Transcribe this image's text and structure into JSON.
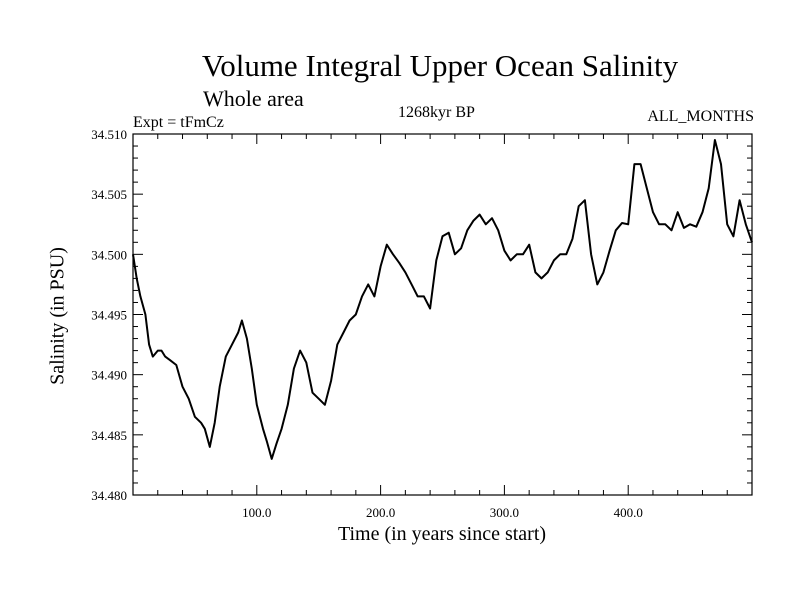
{
  "chart_data": {
    "type": "line",
    "title": "Volume Integral Upper Ocean Salinity",
    "subtitle": "Whole area",
    "left_note": "Expt = tFmCz",
    "center_note": "1268kyr BP",
    "right_note": "ALL_MONTHS",
    "xlabel": "Time (in years since start)",
    "ylabel": "Salinity (in PSU)",
    "xlim": [
      0,
      500
    ],
    "ylim": [
      34.48,
      34.51
    ],
    "xticks": [
      100,
      200,
      300,
      400
    ],
    "xtick_labels": [
      "100.0",
      "200.0",
      "300.0",
      "400.0"
    ],
    "yticks": [
      34.48,
      34.485,
      34.49,
      34.495,
      34.5,
      34.505,
      34.51
    ],
    "ytick_labels": [
      "34.480",
      "34.485",
      "34.490",
      "34.495",
      "34.500",
      "34.505",
      "34.510"
    ],
    "grid": false,
    "series": [
      {
        "name": "salinity",
        "x": [
          0,
          3,
          6,
          10,
          13,
          16,
          20,
          23,
          26,
          30,
          35,
          40,
          45,
          50,
          55,
          58,
          62,
          66,
          70,
          75,
          80,
          85,
          88,
          92,
          96,
          100,
          105,
          108,
          112,
          116,
          120,
          125,
          130,
          135,
          140,
          145,
          150,
          155,
          160,
          165,
          170,
          175,
          180,
          185,
          190,
          195,
          200,
          205,
          210,
          215,
          220,
          225,
          230,
          235,
          240,
          245,
          250,
          255,
          260,
          265,
          270,
          275,
          280,
          285,
          290,
          295,
          300,
          305,
          310,
          315,
          320,
          325,
          330,
          335,
          340,
          345,
          350,
          355,
          360,
          365,
          370,
          375,
          380,
          385,
          390,
          395,
          400,
          405,
          410,
          415,
          420,
          425,
          430,
          435,
          440,
          445,
          450,
          455,
          460,
          465,
          470,
          475,
          480,
          485,
          490,
          495,
          500
        ],
        "values": [
          34.5,
          34.498,
          34.4965,
          34.495,
          34.4925,
          34.4915,
          34.492,
          34.492,
          34.4915,
          34.4912,
          34.4908,
          34.489,
          34.488,
          34.4865,
          34.486,
          34.4855,
          34.484,
          34.486,
          34.489,
          34.4915,
          34.4925,
          34.4935,
          34.4945,
          34.493,
          34.4905,
          34.4875,
          34.4855,
          34.4845,
          34.483,
          34.4843,
          34.4855,
          34.4875,
          34.4905,
          34.492,
          34.491,
          34.4885,
          34.488,
          34.4875,
          34.4895,
          34.4925,
          34.4935,
          34.4945,
          34.495,
          34.4965,
          34.4975,
          34.4965,
          34.499,
          34.5008,
          34.5,
          34.4993,
          34.4985,
          34.4975,
          34.4965,
          34.4965,
          34.4955,
          34.4995,
          34.5015,
          34.5018,
          34.5,
          34.5005,
          34.502,
          34.5028,
          34.5033,
          34.5025,
          34.503,
          34.502,
          34.5003,
          34.4995,
          34.5,
          34.5,
          34.5008,
          34.4985,
          34.498,
          34.4985,
          34.4995,
          34.5,
          34.5,
          34.5013,
          34.504,
          34.5045,
          34.5,
          34.4975,
          34.4985,
          34.5003,
          34.502,
          34.5026,
          34.5025,
          34.5075,
          34.5075,
          34.5055,
          34.5035,
          34.5025,
          34.5025,
          34.502,
          34.5035,
          34.5022,
          34.5025,
          34.5023,
          34.5035,
          34.5055,
          34.5095,
          34.5075,
          34.5025,
          34.5015,
          34.5045,
          34.5025,
          34.501
        ]
      }
    ]
  }
}
